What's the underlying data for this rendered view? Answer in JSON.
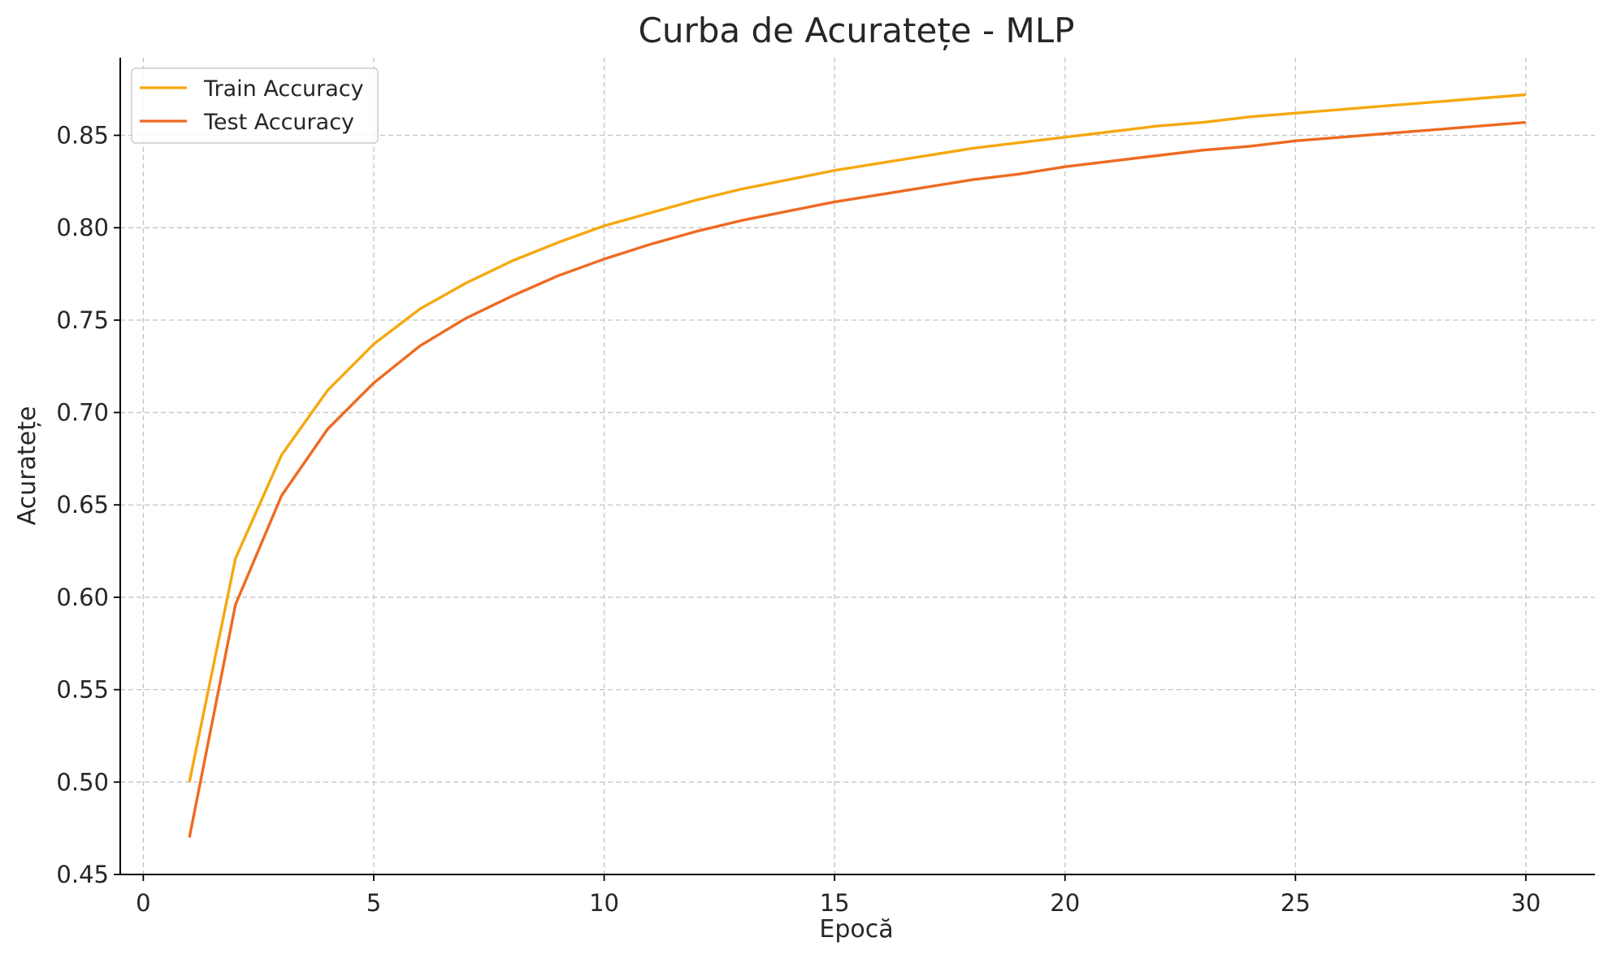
{
  "chart_data": {
    "type": "line",
    "title": "Curba de Acuratețe - MLP",
    "xlabel": "Epocă",
    "ylabel": "Acuratețe",
    "xlim": [
      -0.5,
      31.5
    ],
    "ylim": [
      0.45,
      0.892
    ],
    "xticks": [
      0,
      5,
      10,
      15,
      20,
      25,
      30
    ],
    "xtick_labels": [
      "0",
      "5",
      "10",
      "15",
      "20",
      "25",
      "30"
    ],
    "yticks": [
      0.45,
      0.5,
      0.55,
      0.6,
      0.65,
      0.7,
      0.75,
      0.8,
      0.85
    ],
    "ytick_labels": [
      "0.45",
      "0.50",
      "0.55",
      "0.60",
      "0.65",
      "0.70",
      "0.75",
      "0.80",
      "0.85"
    ],
    "grid": true,
    "legend_position": "top-left",
    "x": [
      1,
      2,
      3,
      4,
      5,
      6,
      7,
      8,
      9,
      10,
      11,
      12,
      13,
      14,
      15,
      16,
      17,
      18,
      19,
      20,
      21,
      22,
      23,
      24,
      25,
      26,
      27,
      28,
      29,
      30
    ],
    "series": [
      {
        "name": "Train Accuracy",
        "color": "#f5a80f",
        "values": [
          0.5,
          0.621,
          0.677,
          0.712,
          0.737,
          0.756,
          0.77,
          0.782,
          0.792,
          0.801,
          0.808,
          0.815,
          0.821,
          0.826,
          0.831,
          0.835,
          0.839,
          0.843,
          0.846,
          0.849,
          0.852,
          0.855,
          0.857,
          0.86,
          0.862,
          0.864,
          0.866,
          0.868,
          0.87,
          0.872
        ]
      },
      {
        "name": "Test Accuracy",
        "color": "#ee6a21",
        "values": [
          0.47,
          0.596,
          0.655,
          0.691,
          0.716,
          0.736,
          0.751,
          0.763,
          0.774,
          0.783,
          0.791,
          0.798,
          0.804,
          0.809,
          0.814,
          0.818,
          0.822,
          0.826,
          0.829,
          0.833,
          0.836,
          0.839,
          0.842,
          0.844,
          0.847,
          0.849,
          0.851,
          0.853,
          0.855,
          0.857
        ]
      }
    ]
  }
}
